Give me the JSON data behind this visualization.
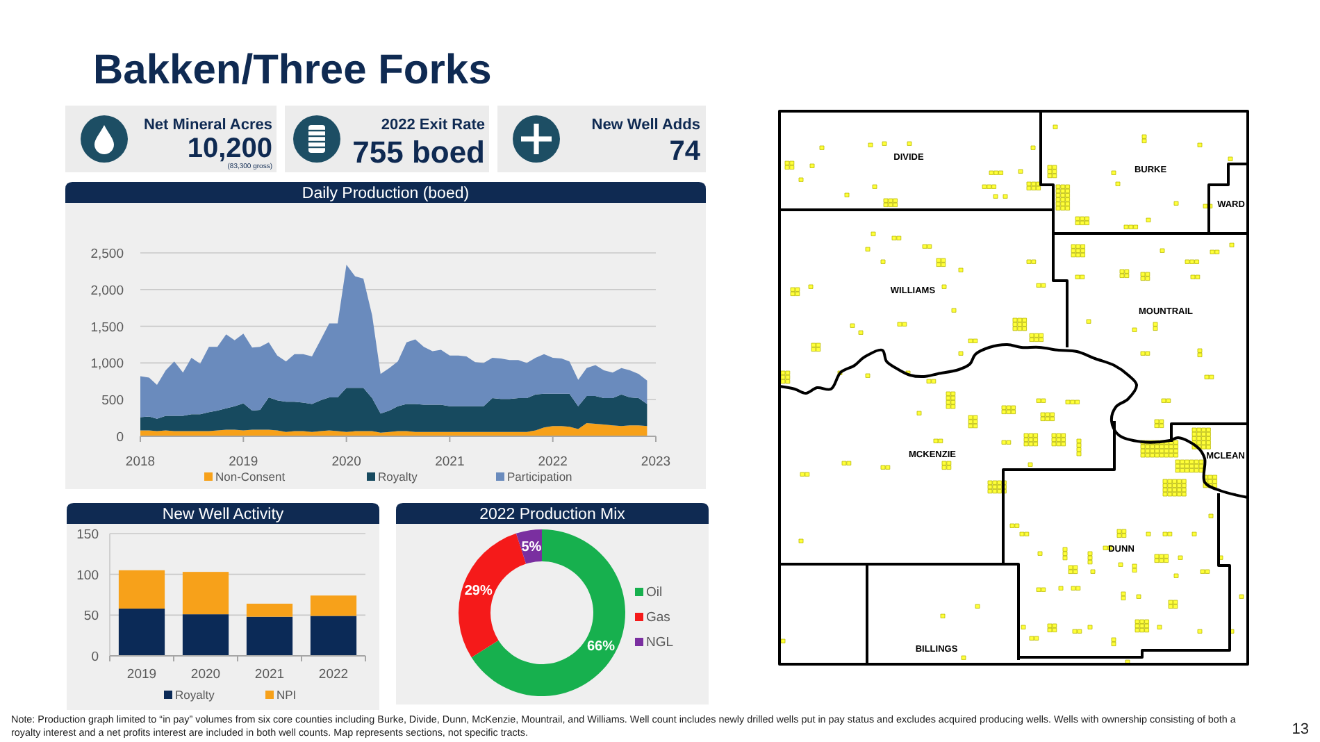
{
  "chart_data": [
    {
      "type": "other",
      "title": "Bakken/Three Forks",
      "annotations": [
        "Net Mineral Acres",
        "10,200",
        "(83,300 gross)",
        "2022 Exit Rate",
        "755 boed",
        "New Well Adds",
        "74",
        "Note: Production graph limited to “in pay” volumes from six core counties including Burke, Divide, Dunn, McKenzie, Mountrail, and Williams. Well count includes newly drilled wells put in pay status and excludes acquired producing wells. Wells with ownership consisting of both a royalty interest and a net profits interest are included in both well counts. Map represents sections, not specific tracts.",
        "13"
      ]
    },
    {
      "type": "area",
      "stacked": true,
      "title": "Daily Production (boed)",
      "x": [
        "2018-01",
        "2018-02",
        "2018-03",
        "2018-04",
        "2018-05",
        "2018-06",
        "2018-07",
        "2018-08",
        "2018-09",
        "2018-10",
        "2018-11",
        "2018-12",
        "2019-01",
        "2019-02",
        "2019-03",
        "2019-04",
        "2019-05",
        "2019-06",
        "2019-07",
        "2019-08",
        "2019-09",
        "2019-10",
        "2019-11",
        "2019-12",
        "2020-01",
        "2020-02",
        "2020-03",
        "2020-04",
        "2020-05",
        "2020-06",
        "2020-07",
        "2020-08",
        "2020-09",
        "2020-10",
        "2020-11",
        "2020-12",
        "2021-01",
        "2021-02",
        "2021-03",
        "2021-04",
        "2021-05",
        "2021-06",
        "2021-07",
        "2021-08",
        "2021-09",
        "2021-10",
        "2021-11",
        "2021-12",
        "2022-01",
        "2022-02",
        "2022-03",
        "2022-04",
        "2022-05",
        "2022-06",
        "2022-07",
        "2022-08",
        "2022-09",
        "2022-10",
        "2022-11",
        "2022-12"
      ],
      "xlim": [
        "2018-01",
        "2023-01"
      ],
      "xticks": [
        "2018",
        "2019",
        "2020",
        "2021",
        "2022",
        "2023"
      ],
      "ylim": [
        0,
        2500
      ],
      "yticks": [
        0,
        500,
        {
          "value": 1000,
          "label": "1,000"
        },
        {
          "value": 1500,
          "label": "1,500"
        },
        {
          "value": 2000,
          "label": "2,000"
        },
        {
          "value": 2500,
          "label": "2,500"
        }
      ],
      "grid": "y",
      "legend": "bottom",
      "series": [
        {
          "name": "Non-Consent",
          "color": "#f7a11a",
          "values": [
            80,
            80,
            70,
            80,
            70,
            70,
            70,
            70,
            70,
            80,
            90,
            90,
            80,
            90,
            90,
            90,
            80,
            60,
            70,
            70,
            60,
            70,
            80,
            70,
            60,
            70,
            70,
            70,
            50,
            60,
            70,
            70,
            60,
            60,
            60,
            60,
            60,
            60,
            60,
            60,
            60,
            60,
            60,
            60,
            60,
            60,
            80,
            120,
            140,
            140,
            130,
            100,
            180,
            170,
            160,
            150,
            140,
            150,
            150,
            140
          ]
        },
        {
          "name": "Royalty",
          "color": "#174a5f",
          "values": [
            180,
            190,
            170,
            200,
            210,
            210,
            230,
            230,
            260,
            270,
            290,
            320,
            370,
            260,
            270,
            440,
            410,
            410,
            400,
            390,
            380,
            420,
            450,
            460,
            600,
            590,
            590,
            450,
            260,
            290,
            340,
            370,
            380,
            370,
            370,
            370,
            350,
            350,
            350,
            350,
            350,
            460,
            450,
            450,
            460,
            460,
            490,
            460,
            440,
            440,
            450,
            310,
            370,
            380,
            360,
            370,
            430,
            380,
            370,
            300
          ]
        },
        {
          "name": "Participation",
          "color": "#6a8bbd",
          "values": [
            560,
            530,
            460,
            620,
            740,
            590,
            770,
            690,
            890,
            870,
            1010,
            900,
            950,
            860,
            860,
            750,
            610,
            550,
            650,
            660,
            650,
            820,
            1010,
            1010,
            1680,
            1520,
            1490,
            1130,
            540,
            580,
            610,
            840,
            880,
            790,
            730,
            750,
            690,
            690,
            680,
            600,
            590,
            550,
            550,
            530,
            520,
            480,
            500,
            540,
            490,
            480,
            440,
            360,
            380,
            420,
            380,
            350,
            360,
            370,
            330,
            320
          ]
        }
      ]
    },
    {
      "type": "bar",
      "stacked": true,
      "title": "New Well Activity",
      "categories": [
        "2019",
        "2020",
        "2021",
        "2022"
      ],
      "ylim": [
        0,
        150
      ],
      "yticks": [
        0,
        50,
        100,
        150
      ],
      "grid": "y",
      "legend": "bottom",
      "series": [
        {
          "name": "Royalty",
          "color": "#0b2a57",
          "values": [
            58,
            51,
            48,
            49
          ]
        },
        {
          "name": "NPI",
          "color": "#f7a11a",
          "values": [
            47,
            52,
            16,
            25
          ]
        }
      ]
    },
    {
      "type": "donut",
      "title": "2022 Production Mix",
      "categories": [
        "Oil",
        "Gas",
        "NGL"
      ],
      "values": [
        66,
        29,
        5
      ],
      "colors": [
        "#17b04e",
        "#f51a1a",
        "#7a2fa0"
      ],
      "value_labels": [
        "66%",
        "29%",
        "5%"
      ],
      "legend": "right"
    },
    {
      "type": "other",
      "annotations": [
        "DIVIDE",
        "BURKE",
        "WARD",
        "WILLIAMS",
        "MOUNTRAIL",
        "MCKENZIE",
        "MCLEAN",
        "DUNN",
        "BILLINGS"
      ]
    }
  ]
}
